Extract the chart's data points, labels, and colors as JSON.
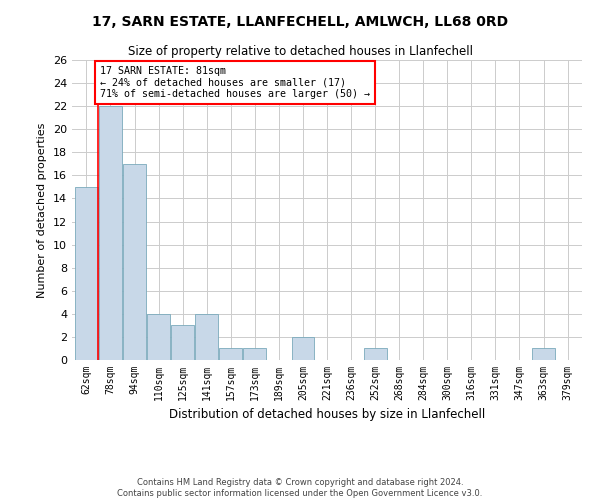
{
  "title": "17, SARN ESTATE, LLANFECHELL, AMLWCH, LL68 0RD",
  "subtitle": "Size of property relative to detached houses in Llanfechell",
  "xlabel": "Distribution of detached houses by size in Llanfechell",
  "ylabel": "Number of detached properties",
  "categories": [
    "62sqm",
    "78sqm",
    "94sqm",
    "110sqm",
    "125sqm",
    "141sqm",
    "157sqm",
    "173sqm",
    "189sqm",
    "205sqm",
    "221sqm",
    "236sqm",
    "252sqm",
    "268sqm",
    "284sqm",
    "300sqm",
    "316sqm",
    "331sqm",
    "347sqm",
    "363sqm",
    "379sqm"
  ],
  "values": [
    15,
    22,
    17,
    4,
    3,
    4,
    1,
    1,
    0,
    2,
    0,
    0,
    1,
    0,
    0,
    0,
    0,
    0,
    0,
    1,
    0
  ],
  "bar_color": "#c8d8e8",
  "bar_edge_color": "#7aaabb",
  "ylim": [
    0,
    26
  ],
  "yticks": [
    0,
    2,
    4,
    6,
    8,
    10,
    12,
    14,
    16,
    18,
    20,
    22,
    24,
    26
  ],
  "annotation_text_line1": "17 SARN ESTATE: 81sqm",
  "annotation_text_line2": "← 24% of detached houses are smaller (17)",
  "annotation_text_line3": "71% of semi-detached houses are larger (50) →",
  "red_line_x": 0.5,
  "footer_line1": "Contains HM Land Registry data © Crown copyright and database right 2024.",
  "footer_line2": "Contains public sector information licensed under the Open Government Licence v3.0.",
  "background_color": "#ffffff",
  "grid_color": "#cccccc"
}
